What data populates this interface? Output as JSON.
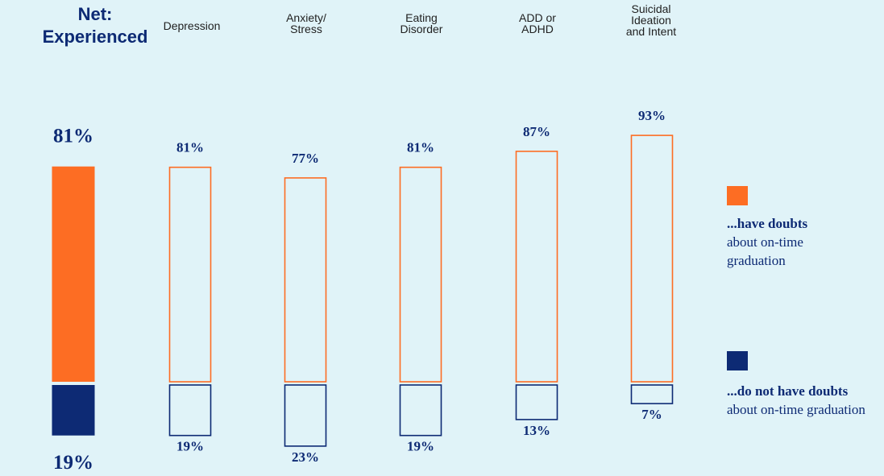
{
  "chart_data": {
    "type": "bar",
    "stacked": true,
    "categories": [
      "Net: Experienced",
      "Depression",
      "Anxiety/ Stress",
      "Eating Disorder",
      "ADD or ADHD",
      "Suicidal Ideation and Intent"
    ],
    "series": [
      {
        "name": "...have doubts about on-time graduation",
        "values": [
          81,
          81,
          77,
          81,
          87,
          93
        ]
      },
      {
        "name": "...do not have doubts about on-time graduation",
        "values": [
          19,
          19,
          23,
          19,
          13,
          7
        ]
      }
    ],
    "value_labels_top": [
      "81%",
      "81%",
      "77%",
      "81%",
      "87%",
      "93%"
    ],
    "value_labels_bottom": [
      "19%",
      "19%",
      "23%",
      "19%",
      "13%",
      "7%"
    ],
    "highlighted_category": "Net: Experienced"
  },
  "labels": {
    "net_line1": "Net:",
    "net_line2": "Experienced",
    "cat1_lines": [
      "Depression"
    ],
    "cat2_lines": [
      "Anxiety/",
      "Stress"
    ],
    "cat3_lines": [
      "Eating",
      "Disorder"
    ],
    "cat4_lines": [
      "ADD or",
      "ADHD"
    ],
    "cat5_lines": [
      "Suicidal",
      "Ideation",
      "and Intent"
    ]
  },
  "legend": {
    "doubts_bold": "...have doubts",
    "doubts_rest": "about on-time graduation",
    "no_doubts_bold": "...do not have doubts",
    "no_doubts_rest": "about on-time graduation"
  },
  "colors": {
    "doubts": "#fd6d23",
    "no_doubts": "#0d2a74",
    "background": "#e0f3f8"
  }
}
